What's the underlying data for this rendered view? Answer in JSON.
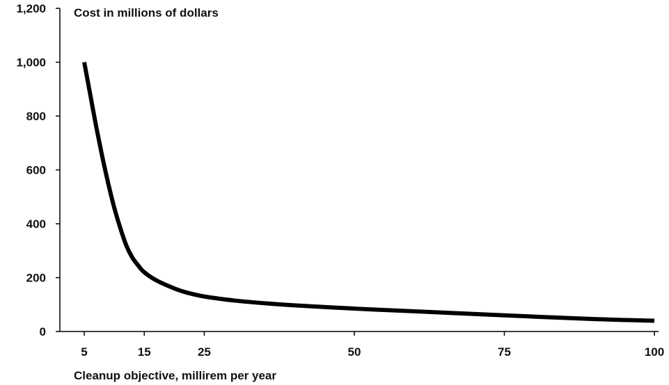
{
  "chart_data": {
    "type": "line",
    "title": "",
    "ylabel": "Cost in millions of dollars",
    "xlabel": "Cleanup objective, millirem per year",
    "xlim": [
      5,
      100
    ],
    "ylim": [
      0,
      1200
    ],
    "x_ticks": [
      5,
      15,
      25,
      50,
      75,
      100
    ],
    "x_tick_labels": [
      "5",
      "15",
      "25",
      "50",
      "75",
      "100"
    ],
    "y_ticks": [
      0,
      200,
      400,
      600,
      800,
      1000,
      1200
    ],
    "y_tick_labels": [
      "0",
      "200",
      "400",
      "600",
      "800",
      "1,000",
      "1,200"
    ],
    "grid": false,
    "legend": "none",
    "series": [
      {
        "x": [
          5,
          6,
          7,
          8,
          9,
          10,
          11,
          12,
          13,
          14,
          15,
          17,
          20,
          22,
          25,
          30,
          35,
          40,
          50,
          60,
          75,
          90,
          100
        ],
        "values": [
          1000,
          880,
          760,
          650,
          550,
          460,
          385,
          320,
          275,
          245,
          220,
          190,
          160,
          145,
          130,
          115,
          105,
          97,
          85,
          75,
          60,
          46,
          40
        ],
        "color": "#000000"
      }
    ]
  }
}
